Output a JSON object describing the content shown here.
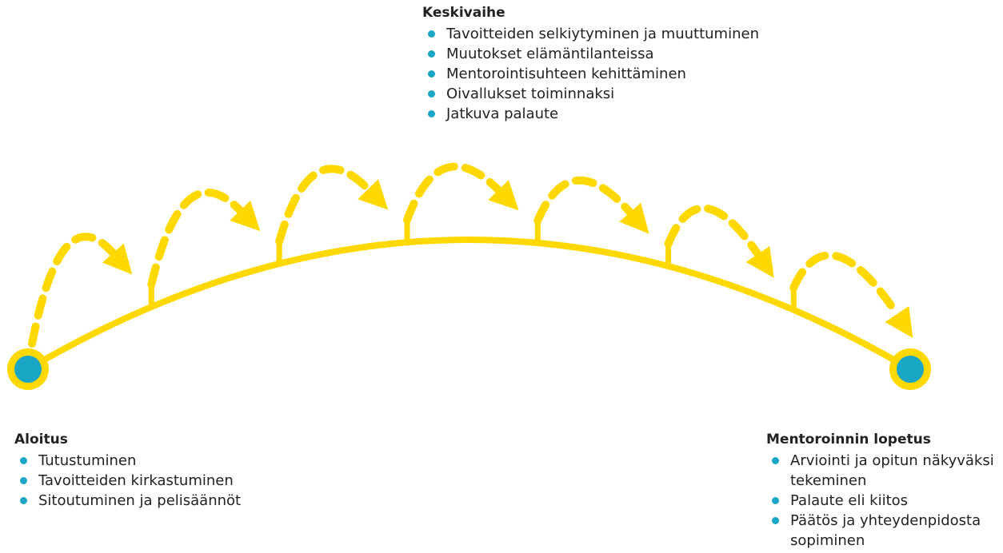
{
  "stages": {
    "middle": {
      "title": "Keskivaihe",
      "items": [
        "Tavoitteiden selkiytyminen ja muuttuminen",
        "Muutokset elämäntilanteissa",
        "Mentorointisuhteen kehittäminen",
        "Oivallukset toiminnaksi",
        "Jatkuva palaute"
      ]
    },
    "start": {
      "title": "Aloitus",
      "items": [
        "Tutustuminen",
        "Tavoitteiden kirkastuminen",
        "Sitoutuminen ja pelisäännöt"
      ]
    },
    "end": {
      "title": "Mentoroinnin lopetus",
      "items": [
        "Arviointi ja opitun näkyväksi tekeminen",
        "Palaute eli kiitos",
        "Päätös ja yhteydenpidosta sopiminen"
      ]
    }
  }
}
